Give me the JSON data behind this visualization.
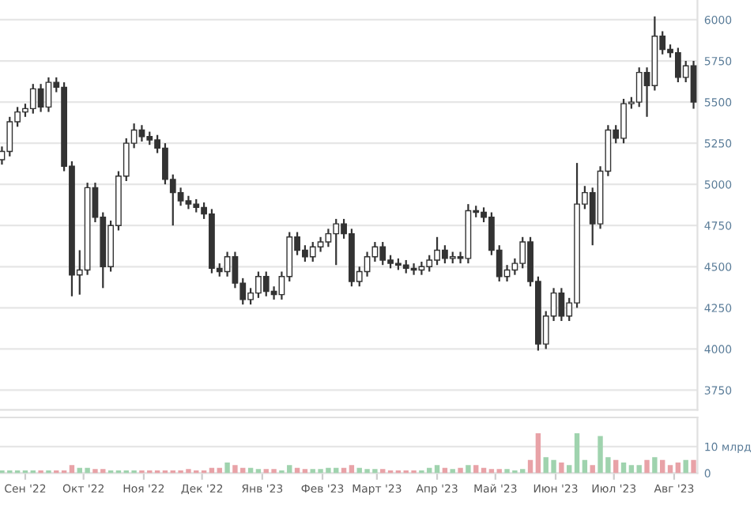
{
  "chart_data": [
    {
      "type": "candlestick",
      "color": "#333333",
      "x": [
        "2022-08-20",
        "2022-08-24",
        "2022-08-28",
        "2022-09-01",
        "2022-09-05",
        "2022-09-09",
        "2022-09-13",
        "2022-09-17",
        "2022-09-21",
        "2022-09-25",
        "2022-09-29",
        "2022-10-03",
        "2022-10-07",
        "2022-10-11",
        "2022-10-15",
        "2022-10-19",
        "2022-10-23",
        "2022-10-27",
        "2022-10-31",
        "2022-11-04",
        "2022-11-08",
        "2022-11-12",
        "2022-11-16",
        "2022-11-20",
        "2022-11-24",
        "2022-11-28",
        "2022-12-02",
        "2022-12-06",
        "2022-12-10",
        "2022-12-14",
        "2022-12-18",
        "2022-12-22",
        "2022-12-26",
        "2022-12-30",
        "2023-01-03",
        "2023-01-07",
        "2023-01-11",
        "2023-01-15",
        "2023-01-19",
        "2023-01-23",
        "2023-01-27",
        "2023-01-31",
        "2023-02-04",
        "2023-02-08",
        "2023-02-12",
        "2023-02-16",
        "2023-02-20",
        "2023-02-24",
        "2023-02-28",
        "2023-03-04",
        "2023-03-08",
        "2023-03-12",
        "2023-03-16",
        "2023-03-20",
        "2023-03-24",
        "2023-03-28",
        "2023-04-01",
        "2023-04-05",
        "2023-04-09",
        "2023-04-13",
        "2023-04-17",
        "2023-04-21",
        "2023-04-25",
        "2023-04-29",
        "2023-05-03",
        "2023-05-07",
        "2023-05-11",
        "2023-05-15",
        "2023-05-19",
        "2023-05-23",
        "2023-05-27",
        "2023-05-31",
        "2023-06-04",
        "2023-06-08",
        "2023-06-12",
        "2023-06-16",
        "2023-06-20",
        "2023-06-24",
        "2023-06-28",
        "2023-07-02",
        "2023-07-06",
        "2023-07-10",
        "2023-07-14",
        "2023-07-18",
        "2023-07-22",
        "2023-07-26",
        "2023-07-30",
        "2023-08-03",
        "2023-08-07",
        "2023-08-11"
      ],
      "ohlc": [
        [
          5150,
          5230,
          5120,
          5200
        ],
        [
          5200,
          5410,
          5170,
          5380
        ],
        [
          5380,
          5470,
          5350,
          5440
        ],
        [
          5440,
          5490,
          5410,
          5460
        ],
        [
          5460,
          5610,
          5430,
          5580
        ],
        [
          5580,
          5610,
          5440,
          5470
        ],
        [
          5470,
          5650,
          5440,
          5620
        ],
        [
          5620,
          5650,
          5560,
          5590
        ],
        [
          5590,
          5620,
          5080,
          5110
        ],
        [
          5110,
          5140,
          4320,
          4450
        ],
        [
          4450,
          4600,
          4330,
          4480
        ],
        [
          4480,
          5010,
          4450,
          4980
        ],
        [
          4980,
          5010,
          4770,
          4800
        ],
        [
          4800,
          4830,
          4370,
          4500
        ],
        [
          4500,
          4780,
          4470,
          4750
        ],
        [
          4750,
          5080,
          4720,
          5050
        ],
        [
          5050,
          5280,
          5020,
          5250
        ],
        [
          5250,
          5370,
          5220,
          5330
        ],
        [
          5330,
          5360,
          5260,
          5290
        ],
        [
          5290,
          5320,
          5240,
          5270
        ],
        [
          5270,
          5300,
          5190,
          5220
        ],
        [
          5220,
          5250,
          5000,
          5030
        ],
        [
          5030,
          5060,
          4750,
          4950
        ],
        [
          4950,
          4980,
          4870,
          4900
        ],
        [
          4900,
          4930,
          4850,
          4880
        ],
        [
          4880,
          4910,
          4830,
          4860
        ],
        [
          4860,
          4890,
          4790,
          4820
        ],
        [
          4820,
          4850,
          4460,
          4490
        ],
        [
          4490,
          4520,
          4440,
          4470
        ],
        [
          4470,
          4590,
          4440,
          4560
        ],
        [
          4560,
          4590,
          4370,
          4400
        ],
        [
          4400,
          4430,
          4270,
          4300
        ],
        [
          4300,
          4370,
          4270,
          4340
        ],
        [
          4340,
          4470,
          4310,
          4440
        ],
        [
          4440,
          4470,
          4320,
          4350
        ],
        [
          4350,
          4380,
          4300,
          4330
        ],
        [
          4330,
          4470,
          4300,
          4440
        ],
        [
          4440,
          4710,
          4410,
          4680
        ],
        [
          4680,
          4710,
          4570,
          4600
        ],
        [
          4600,
          4630,
          4530,
          4560
        ],
        [
          4560,
          4650,
          4530,
          4620
        ],
        [
          4620,
          4680,
          4590,
          4650
        ],
        [
          4650,
          4730,
          4620,
          4700
        ],
        [
          4700,
          4790,
          4510,
          4760
        ],
        [
          4760,
          4790,
          4670,
          4700
        ],
        [
          4700,
          4730,
          4380,
          4410
        ],
        [
          4410,
          4500,
          4380,
          4470
        ],
        [
          4470,
          4590,
          4440,
          4560
        ],
        [
          4560,
          4650,
          4530,
          4620
        ],
        [
          4620,
          4650,
          4510,
          4540
        ],
        [
          4540,
          4570,
          4490,
          4520
        ],
        [
          4520,
          4550,
          4480,
          4510
        ],
        [
          4510,
          4540,
          4460,
          4490
        ],
        [
          4490,
          4520,
          4450,
          4480
        ],
        [
          4480,
          4530,
          4450,
          4500
        ],
        [
          4500,
          4570,
          4470,
          4540
        ],
        [
          4540,
          4680,
          4510,
          4600
        ],
        [
          4600,
          4630,
          4520,
          4550
        ],
        [
          4550,
          4590,
          4520,
          4560
        ],
        [
          4560,
          4590,
          4520,
          4550
        ],
        [
          4550,
          4880,
          4520,
          4840
        ],
        [
          4840,
          4870,
          4800,
          4830
        ],
        [
          4830,
          4860,
          4770,
          4800
        ],
        [
          4800,
          4830,
          4570,
          4600
        ],
        [
          4600,
          4630,
          4410,
          4440
        ],
        [
          4440,
          4510,
          4410,
          4480
        ],
        [
          4480,
          4550,
          4450,
          4520
        ],
        [
          4520,
          4680,
          4490,
          4650
        ],
        [
          4650,
          4680,
          4380,
          4410
        ],
        [
          4410,
          4440,
          3990,
          4030
        ],
        [
          4030,
          4230,
          4000,
          4200
        ],
        [
          4200,
          4370,
          4170,
          4340
        ],
        [
          4340,
          4370,
          4170,
          4200
        ],
        [
          4200,
          4310,
          4170,
          4280
        ],
        [
          4280,
          5130,
          4250,
          4880
        ],
        [
          4880,
          4990,
          4850,
          4950
        ],
        [
          4950,
          4980,
          4630,
          4760
        ],
        [
          4760,
          5110,
          4730,
          5080
        ],
        [
          5080,
          5360,
          5050,
          5330
        ],
        [
          5330,
          5360,
          5250,
          5280
        ],
        [
          5280,
          5520,
          5250,
          5490
        ],
        [
          5490,
          5530,
          5460,
          5500
        ],
        [
          5500,
          5710,
          5470,
          5680
        ],
        [
          5680,
          5710,
          5410,
          5600
        ],
        [
          5600,
          6020,
          5570,
          5900
        ],
        [
          5900,
          5930,
          5790,
          5820
        ],
        [
          5820,
          5850,
          5770,
          5800
        ],
        [
          5800,
          5830,
          5620,
          5650
        ],
        [
          5650,
          5750,
          5620,
          5720
        ],
        [
          5720,
          5750,
          5460,
          5500
        ]
      ],
      "xlim": [
        "2022-08-19",
        "2023-08-13"
      ],
      "ylim": [
        3630,
        6120
      ],
      "yticks": [
        3750,
        4000,
        4250,
        4500,
        4750,
        5000,
        5250,
        5500,
        5750,
        6000
      ],
      "grid": "y",
      "tick_labels": "y"
    },
    {
      "type": "bar",
      "x": [
        "2022-08-20",
        "2022-08-24",
        "2022-08-28",
        "2022-09-01",
        "2022-09-05",
        "2022-09-09",
        "2022-09-13",
        "2022-09-17",
        "2022-09-21",
        "2022-09-25",
        "2022-09-29",
        "2022-10-03",
        "2022-10-07",
        "2022-10-11",
        "2022-10-15",
        "2022-10-19",
        "2022-10-23",
        "2022-10-27",
        "2022-10-31",
        "2022-11-04",
        "2022-11-08",
        "2022-11-12",
        "2022-11-16",
        "2022-11-20",
        "2022-11-24",
        "2022-11-28",
        "2022-12-02",
        "2022-12-06",
        "2022-12-10",
        "2022-12-14",
        "2022-12-18",
        "2022-12-22",
        "2022-12-26",
        "2022-12-30",
        "2023-01-03",
        "2023-01-07",
        "2023-01-11",
        "2023-01-15",
        "2023-01-19",
        "2023-01-23",
        "2023-01-27",
        "2023-01-31",
        "2023-02-04",
        "2023-02-08",
        "2023-02-12",
        "2023-02-16",
        "2023-02-20",
        "2023-02-24",
        "2023-02-28",
        "2023-03-04",
        "2023-03-08",
        "2023-03-12",
        "2023-03-16",
        "2023-03-20",
        "2023-03-24",
        "2023-03-28",
        "2023-04-01",
        "2023-04-05",
        "2023-04-09",
        "2023-04-13",
        "2023-04-17",
        "2023-04-21",
        "2023-04-25",
        "2023-04-29",
        "2023-05-03",
        "2023-05-07",
        "2023-05-11",
        "2023-05-15",
        "2023-05-19",
        "2023-05-23",
        "2023-05-27",
        "2023-05-31",
        "2023-06-04",
        "2023-06-08",
        "2023-06-12",
        "2023-06-16",
        "2023-06-20",
        "2023-06-24",
        "2023-06-28",
        "2023-07-02",
        "2023-07-06",
        "2023-07-10",
        "2023-07-14",
        "2023-07-18",
        "2023-07-22",
        "2023-07-26",
        "2023-07-30",
        "2023-08-03",
        "2023-08-07",
        "2023-08-11"
      ],
      "values": [
        1,
        1,
        1,
        1,
        1,
        1,
        1,
        1,
        1,
        3,
        2,
        2,
        1.5,
        1.5,
        1,
        1,
        1,
        1,
        1,
        1,
        1,
        1,
        1,
        1,
        1.5,
        1,
        1,
        2,
        2,
        4,
        3,
        2,
        2,
        1.5,
        1.5,
        1.5,
        1,
        3,
        2,
        1.5,
        1.5,
        1.5,
        2,
        2,
        2,
        3,
        2,
        1.5,
        1.5,
        1.5,
        1,
        1,
        1,
        1,
        1,
        2,
        3,
        2,
        1.5,
        2,
        3,
        3,
        2,
        1.5,
        1.5,
        1.5,
        1,
        1.5,
        5,
        15,
        6,
        5,
        4,
        3,
        15,
        5,
        3,
        14,
        6,
        5,
        4,
        3,
        3,
        5,
        6,
        5,
        3,
        4,
        5,
        5
      ],
      "colors": [
        "#9fd3ae",
        "#9fd3ae",
        "#9fd3ae",
        "#9fd3ae",
        "#9fd3ae",
        "#e8a2a7",
        "#9fd3ae",
        "#e8a2a7",
        "#e8a2a7",
        "#e8a2a7",
        "#9fd3ae",
        "#9fd3ae",
        "#e8a2a7",
        "#e8a2a7",
        "#9fd3ae",
        "#9fd3ae",
        "#9fd3ae",
        "#9fd3ae",
        "#e8a2a7",
        "#e8a2a7",
        "#e8a2a7",
        "#e8a2a7",
        "#e8a2a7",
        "#e8a2a7",
        "#e8a2a7",
        "#e8a2a7",
        "#e8a2a7",
        "#e8a2a7",
        "#e8a2a7",
        "#9fd3ae",
        "#e8a2a7",
        "#e8a2a7",
        "#9fd3ae",
        "#9fd3ae",
        "#e8a2a7",
        "#e8a2a7",
        "#9fd3ae",
        "#9fd3ae",
        "#e8a2a7",
        "#e8a2a7",
        "#9fd3ae",
        "#9fd3ae",
        "#9fd3ae",
        "#9fd3ae",
        "#e8a2a7",
        "#e8a2a7",
        "#9fd3ae",
        "#9fd3ae",
        "#9fd3ae",
        "#e8a2a7",
        "#e8a2a7",
        "#e8a2a7",
        "#e8a2a7",
        "#e8a2a7",
        "#9fd3ae",
        "#9fd3ae",
        "#9fd3ae",
        "#e8a2a7",
        "#9fd3ae",
        "#e8a2a7",
        "#9fd3ae",
        "#e8a2a7",
        "#e8a2a7",
        "#e8a2a7",
        "#e8a2a7",
        "#9fd3ae",
        "#9fd3ae",
        "#9fd3ae",
        "#e8a2a7",
        "#e8a2a7",
        "#9fd3ae",
        "#9fd3ae",
        "#e8a2a7",
        "#9fd3ae",
        "#9fd3ae",
        "#9fd3ae",
        "#e8a2a7",
        "#9fd3ae",
        "#9fd3ae",
        "#e8a2a7",
        "#9fd3ae",
        "#9fd3ae",
        "#9fd3ae",
        "#e8a2a7",
        "#9fd3ae",
        "#e8a2a7",
        "#e8a2a7",
        "#e8a2a7",
        "#9fd3ae",
        "#e8a2a7"
      ],
      "xlim": [
        "2022-08-19",
        "2023-08-13"
      ],
      "xticks": [
        {
          "value": "2022-09-01",
          "label": "Сен '22"
        },
        {
          "value": "2022-10-01",
          "label": "Окт '22"
        },
        {
          "value": "2022-11-01",
          "label": "Ноя '22"
        },
        {
          "value": "2022-12-01",
          "label": "Дек '22"
        },
        {
          "value": "2023-01-01",
          "label": "Янв '23"
        },
        {
          "value": "2023-02-01",
          "label": "Фев '23"
        },
        {
          "value": "2023-03-01",
          "label": "Март '23"
        },
        {
          "value": "2023-04-01",
          "label": "Апр '23"
        },
        {
          "value": "2023-05-01",
          "label": "Май '23"
        },
        {
          "value": "2023-06-01",
          "label": "Июн '23"
        },
        {
          "value": "2023-07-01",
          "label": "Июл '23"
        },
        {
          "value": "2023-08-01",
          "label": "Авг '23"
        }
      ],
      "ylim": [
        0,
        21
      ],
      "yticks": [
        0,
        {
          "value": 10,
          "label": "10 млрд"
        }
      ],
      "grid": "y"
    }
  ]
}
